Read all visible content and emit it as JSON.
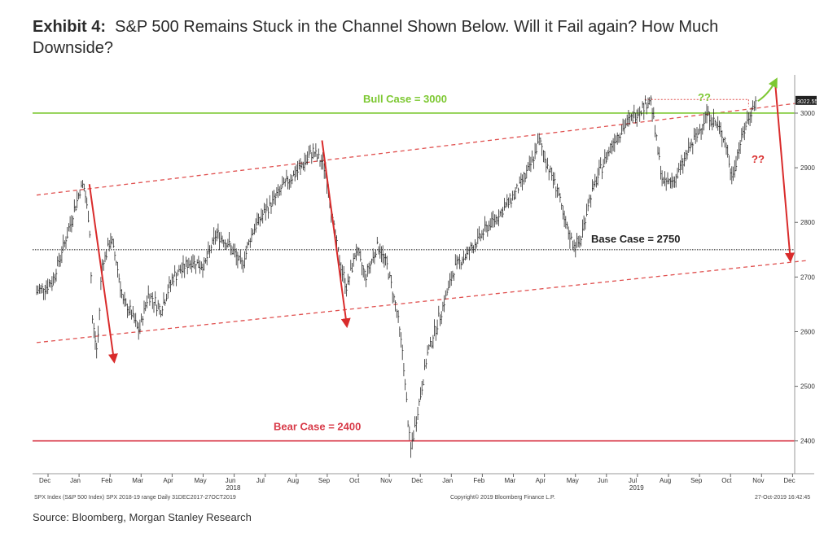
{
  "header": {
    "exhibit": "Exhibit 4:",
    "title": "S&P 500 Remains Stuck in the Channel Shown Below. Will it Fail again? How Much Downside?"
  },
  "source": "Source: Bloomberg, Morgan Stanley Research",
  "colors": {
    "bull": "#7dc832",
    "bear": "#d83a48",
    "arrow": "#d92b2b",
    "channel": "#e0504f",
    "base": "#333333",
    "price": "#2a2a2a"
  },
  "chart_data": {
    "type": "line",
    "title": "S&P 500 Remains Stuck in the Channel Shown Below. Will it Fail again? How Much Downside?",
    "ylim": [
      2340,
      3070
    ],
    "yticks": [
      2400,
      2500,
      2600,
      2700,
      2800,
      2900,
      3000
    ],
    "last_value_label": "3022.55",
    "x_months": [
      "Dec",
      "Jan",
      "Feb",
      "Mar",
      "Apr",
      "May",
      "Jun",
      "Jul",
      "Aug",
      "Sep",
      "Oct",
      "Nov",
      "Dec",
      "Jan",
      "Feb",
      "Mar",
      "Apr",
      "May",
      "Jun",
      "Jul",
      "Aug",
      "Sep",
      "Oct",
      "Nov",
      "Dec"
    ],
    "year_labels": [
      {
        "text": "2018",
        "month_index": 6
      },
      {
        "text": "2019",
        "month_index": 19
      }
    ],
    "series": [
      {
        "name": "SPX",
        "points": [
          [
            0,
            2673
          ],
          [
            0.5,
            2690
          ],
          [
            1.0,
            2780
          ],
          [
            1.4,
            2860
          ],
          [
            1.5,
            2872
          ],
          [
            1.7,
            2800
          ],
          [
            1.8,
            2620
          ],
          [
            1.95,
            2560
          ],
          [
            2.1,
            2720
          ],
          [
            2.4,
            2770
          ],
          [
            2.6,
            2720
          ],
          [
            2.8,
            2650
          ],
          [
            3.0,
            2640
          ],
          [
            3.3,
            2600
          ],
          [
            3.6,
            2670
          ],
          [
            4.0,
            2640
          ],
          [
            4.4,
            2700
          ],
          [
            4.8,
            2720
          ],
          [
            5.0,
            2730
          ],
          [
            5.4,
            2720
          ],
          [
            5.8,
            2780
          ],
          [
            6.2,
            2760
          ],
          [
            6.6,
            2720
          ],
          [
            7.0,
            2790
          ],
          [
            7.5,
            2830
          ],
          [
            8.0,
            2870
          ],
          [
            8.5,
            2900
          ],
          [
            8.9,
            2930
          ],
          [
            9.3,
            2900
          ],
          [
            9.6,
            2780
          ],
          [
            9.8,
            2720
          ],
          [
            10.0,
            2680
          ],
          [
            10.3,
            2750
          ],
          [
            10.6,
            2700
          ],
          [
            11.0,
            2760
          ],
          [
            11.3,
            2720
          ],
          [
            11.6,
            2640
          ],
          [
            11.8,
            2560
          ],
          [
            12.05,
            2380
          ],
          [
            12.3,
            2460
          ],
          [
            12.6,
            2560
          ],
          [
            13.0,
            2630
          ],
          [
            13.5,
            2720
          ],
          [
            14.0,
            2750
          ],
          [
            14.5,
            2790
          ],
          [
            15.0,
            2820
          ],
          [
            15.5,
            2860
          ],
          [
            15.9,
            2900
          ],
          [
            16.2,
            2950
          ],
          [
            16.5,
            2900
          ],
          [
            16.8,
            2860
          ],
          [
            17.0,
            2800
          ],
          [
            17.3,
            2760
          ],
          [
            17.5,
            2760
          ],
          [
            17.8,
            2840
          ],
          [
            18.2,
            2900
          ],
          [
            18.6,
            2950
          ],
          [
            19.0,
            2980
          ],
          [
            19.5,
            3010
          ],
          [
            19.8,
            3025
          ],
          [
            20.0,
            2940
          ],
          [
            20.2,
            2870
          ],
          [
            20.6,
            2880
          ],
          [
            21.0,
            2930
          ],
          [
            21.3,
            2960
          ],
          [
            21.6,
            3000
          ],
          [
            21.9,
            2980
          ],
          [
            22.2,
            2950
          ],
          [
            22.4,
            2880
          ],
          [
            22.7,
            2950
          ],
          [
            23.0,
            3000
          ],
          [
            23.2,
            3022.55
          ]
        ]
      }
    ],
    "annotations": {
      "bull_case": {
        "label": "Bull Case = 3000",
        "value": 3000
      },
      "base_case": {
        "label": "Base Case = 2750",
        "value": 2750
      },
      "bear_case": {
        "label": "Bear Case = 2400",
        "value": 2400
      },
      "question_up": "??",
      "question_down": "??"
    },
    "channel": {
      "upper": [
        [
          0,
          2850
        ],
        [
          24.8,
          3020
        ]
      ],
      "lower": [
        [
          0,
          2580
        ],
        [
          24.8,
          2730
        ]
      ]
    },
    "arrows": [
      {
        "from": [
          1.7,
          2870
        ],
        "to": [
          2.5,
          2545
        ]
      },
      {
        "from": [
          9.2,
          2950
        ],
        "to": [
          10.0,
          2610
        ]
      },
      {
        "from": [
          23.8,
          3060
        ],
        "to": [
          24.3,
          2730
        ]
      }
    ],
    "footer": {
      "left": "SPX Index (S&P 500 Index) SPX 2018-19 range Daily 31DEC2017-27OCT2019",
      "center": "Copyright© 2019 Bloomberg Finance L.P.",
      "right": "27-Oct-2019 16:42:45"
    }
  }
}
